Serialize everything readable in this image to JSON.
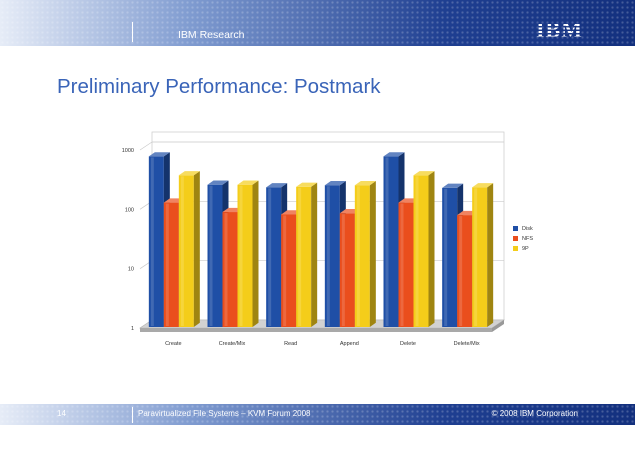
{
  "header": {
    "title": "IBM Research",
    "logo": "IBM"
  },
  "slide": {
    "title": "Preliminary Performance: Postmark"
  },
  "footer": {
    "page_number": "14",
    "session": "Paravirtualized File Systems – KVM Forum 2008",
    "copyright": "© 2008 IBM Corporation"
  },
  "chart_data": {
    "type": "bar",
    "title": "",
    "xlabel": "",
    "ylabel": "",
    "yscale": "log",
    "ylim": [
      1,
      1000
    ],
    "yticks": [
      "1",
      "10",
      "100",
      "1000"
    ],
    "grid": true,
    "legend_position": "right",
    "categories": [
      "Create",
      "Create/Mix",
      "Read",
      "Append",
      "Delete",
      "Delete/Mix"
    ],
    "series": [
      {
        "name": "Disk",
        "color": "#1f4fa6",
        "values": [
          780,
          260,
          235,
          255,
          780,
          230
        ]
      },
      {
        "name": "NFS",
        "color": "#ea4e1d",
        "values": [
          130,
          90,
          82,
          86,
          130,
          80
        ]
      },
      {
        "name": "9P",
        "color": "#f4cd1a",
        "values": [
          375,
          260,
          240,
          255,
          375,
          235
        ]
      }
    ]
  }
}
